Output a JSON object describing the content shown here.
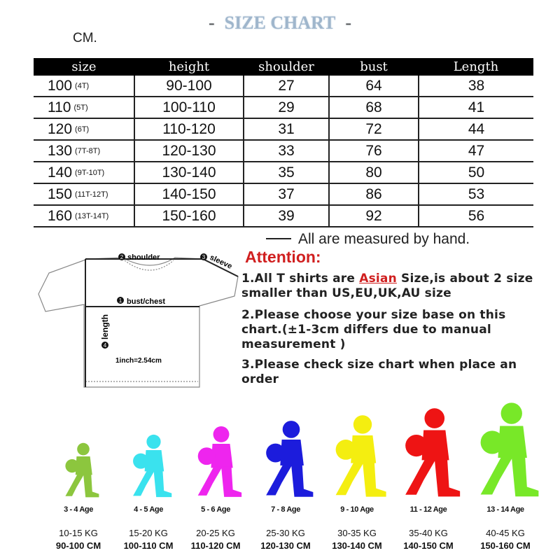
{
  "title": "SIZE CHART",
  "unit_label": "CM.",
  "table": {
    "headers": [
      "size",
      "height",
      "shoulder",
      "bust",
      "Length"
    ],
    "rows": [
      {
        "size": "100",
        "tag": "(4T)",
        "height": "90-100",
        "shoulder": "27",
        "bust": "64",
        "length": "38"
      },
      {
        "size": "110",
        "tag": "(5T)",
        "height": "100-110",
        "shoulder": "29",
        "bust": "68",
        "length": "41"
      },
      {
        "size": "120",
        "tag": "(6T)",
        "height": "110-120",
        "shoulder": "31",
        "bust": "72",
        "length": "44"
      },
      {
        "size": "130",
        "tag": "(7T-8T)",
        "height": "120-130",
        "shoulder": "33",
        "bust": "76",
        "length": "47"
      },
      {
        "size": "140",
        "tag": "(9T-10T)",
        "height": "130-140",
        "shoulder": "35",
        "bust": "80",
        "length": "50"
      },
      {
        "size": "150",
        "tag": "(11T-12T)",
        "height": "140-150",
        "shoulder": "37",
        "bust": "86",
        "length": "53"
      },
      {
        "size": "160",
        "tag": "(13T-14T)",
        "height": "150-160",
        "shoulder": "39",
        "bust": "92",
        "length": "56"
      }
    ]
  },
  "note": "All are measured by hand.",
  "diagram": {
    "shoulder": "shoulder",
    "sleeve": "sleeve",
    "bust": "bust/chest",
    "length": "length",
    "conversion": "1inch=2.54cm",
    "num1": "1",
    "num2": "2",
    "num3": "3",
    "num4": "4"
  },
  "attention": {
    "heading": "Attention:",
    "p1_before": "1.All T shirts are ",
    "p1_highlight": "Asian",
    "p1_after": " Size,is about 2 size smaller than US,EU,UK,AU size",
    "p2": "2.Please choose your size base on this chart.(±1-3cm differs due to manual measurement )",
    "p3": "3.Please check size chart when place an order"
  },
  "kids": [
    {
      "age": "3 - 4 Age",
      "weight": "10-15 KG",
      "height": "90-100 CM",
      "color": "#8cc63e"
    },
    {
      "age": "4 - 5 Age",
      "weight": "15-20 KG",
      "height": "100-110 CM",
      "color": "#3ae2ee"
    },
    {
      "age": "5 - 6 Age",
      "weight": "20-25 KG",
      "height": "110-120 CM",
      "color": "#ee25ee"
    },
    {
      "age": "7 - 8 Age",
      "weight": "25-30 KG",
      "height": "120-130 CM",
      "color": "#1c1cdc"
    },
    {
      "age": "9 - 10 Age",
      "weight": "30-35 KG",
      "height": "130-140 CM",
      "color": "#f4ee10"
    },
    {
      "age": "11 - 12 Age",
      "weight": "35-40 KG",
      "height": "140-150 CM",
      "color": "#ee1414"
    },
    {
      "age": "13 - 14 Age",
      "weight": "40-45 KG",
      "height": "150-160 CM",
      "color": "#78e828"
    }
  ]
}
